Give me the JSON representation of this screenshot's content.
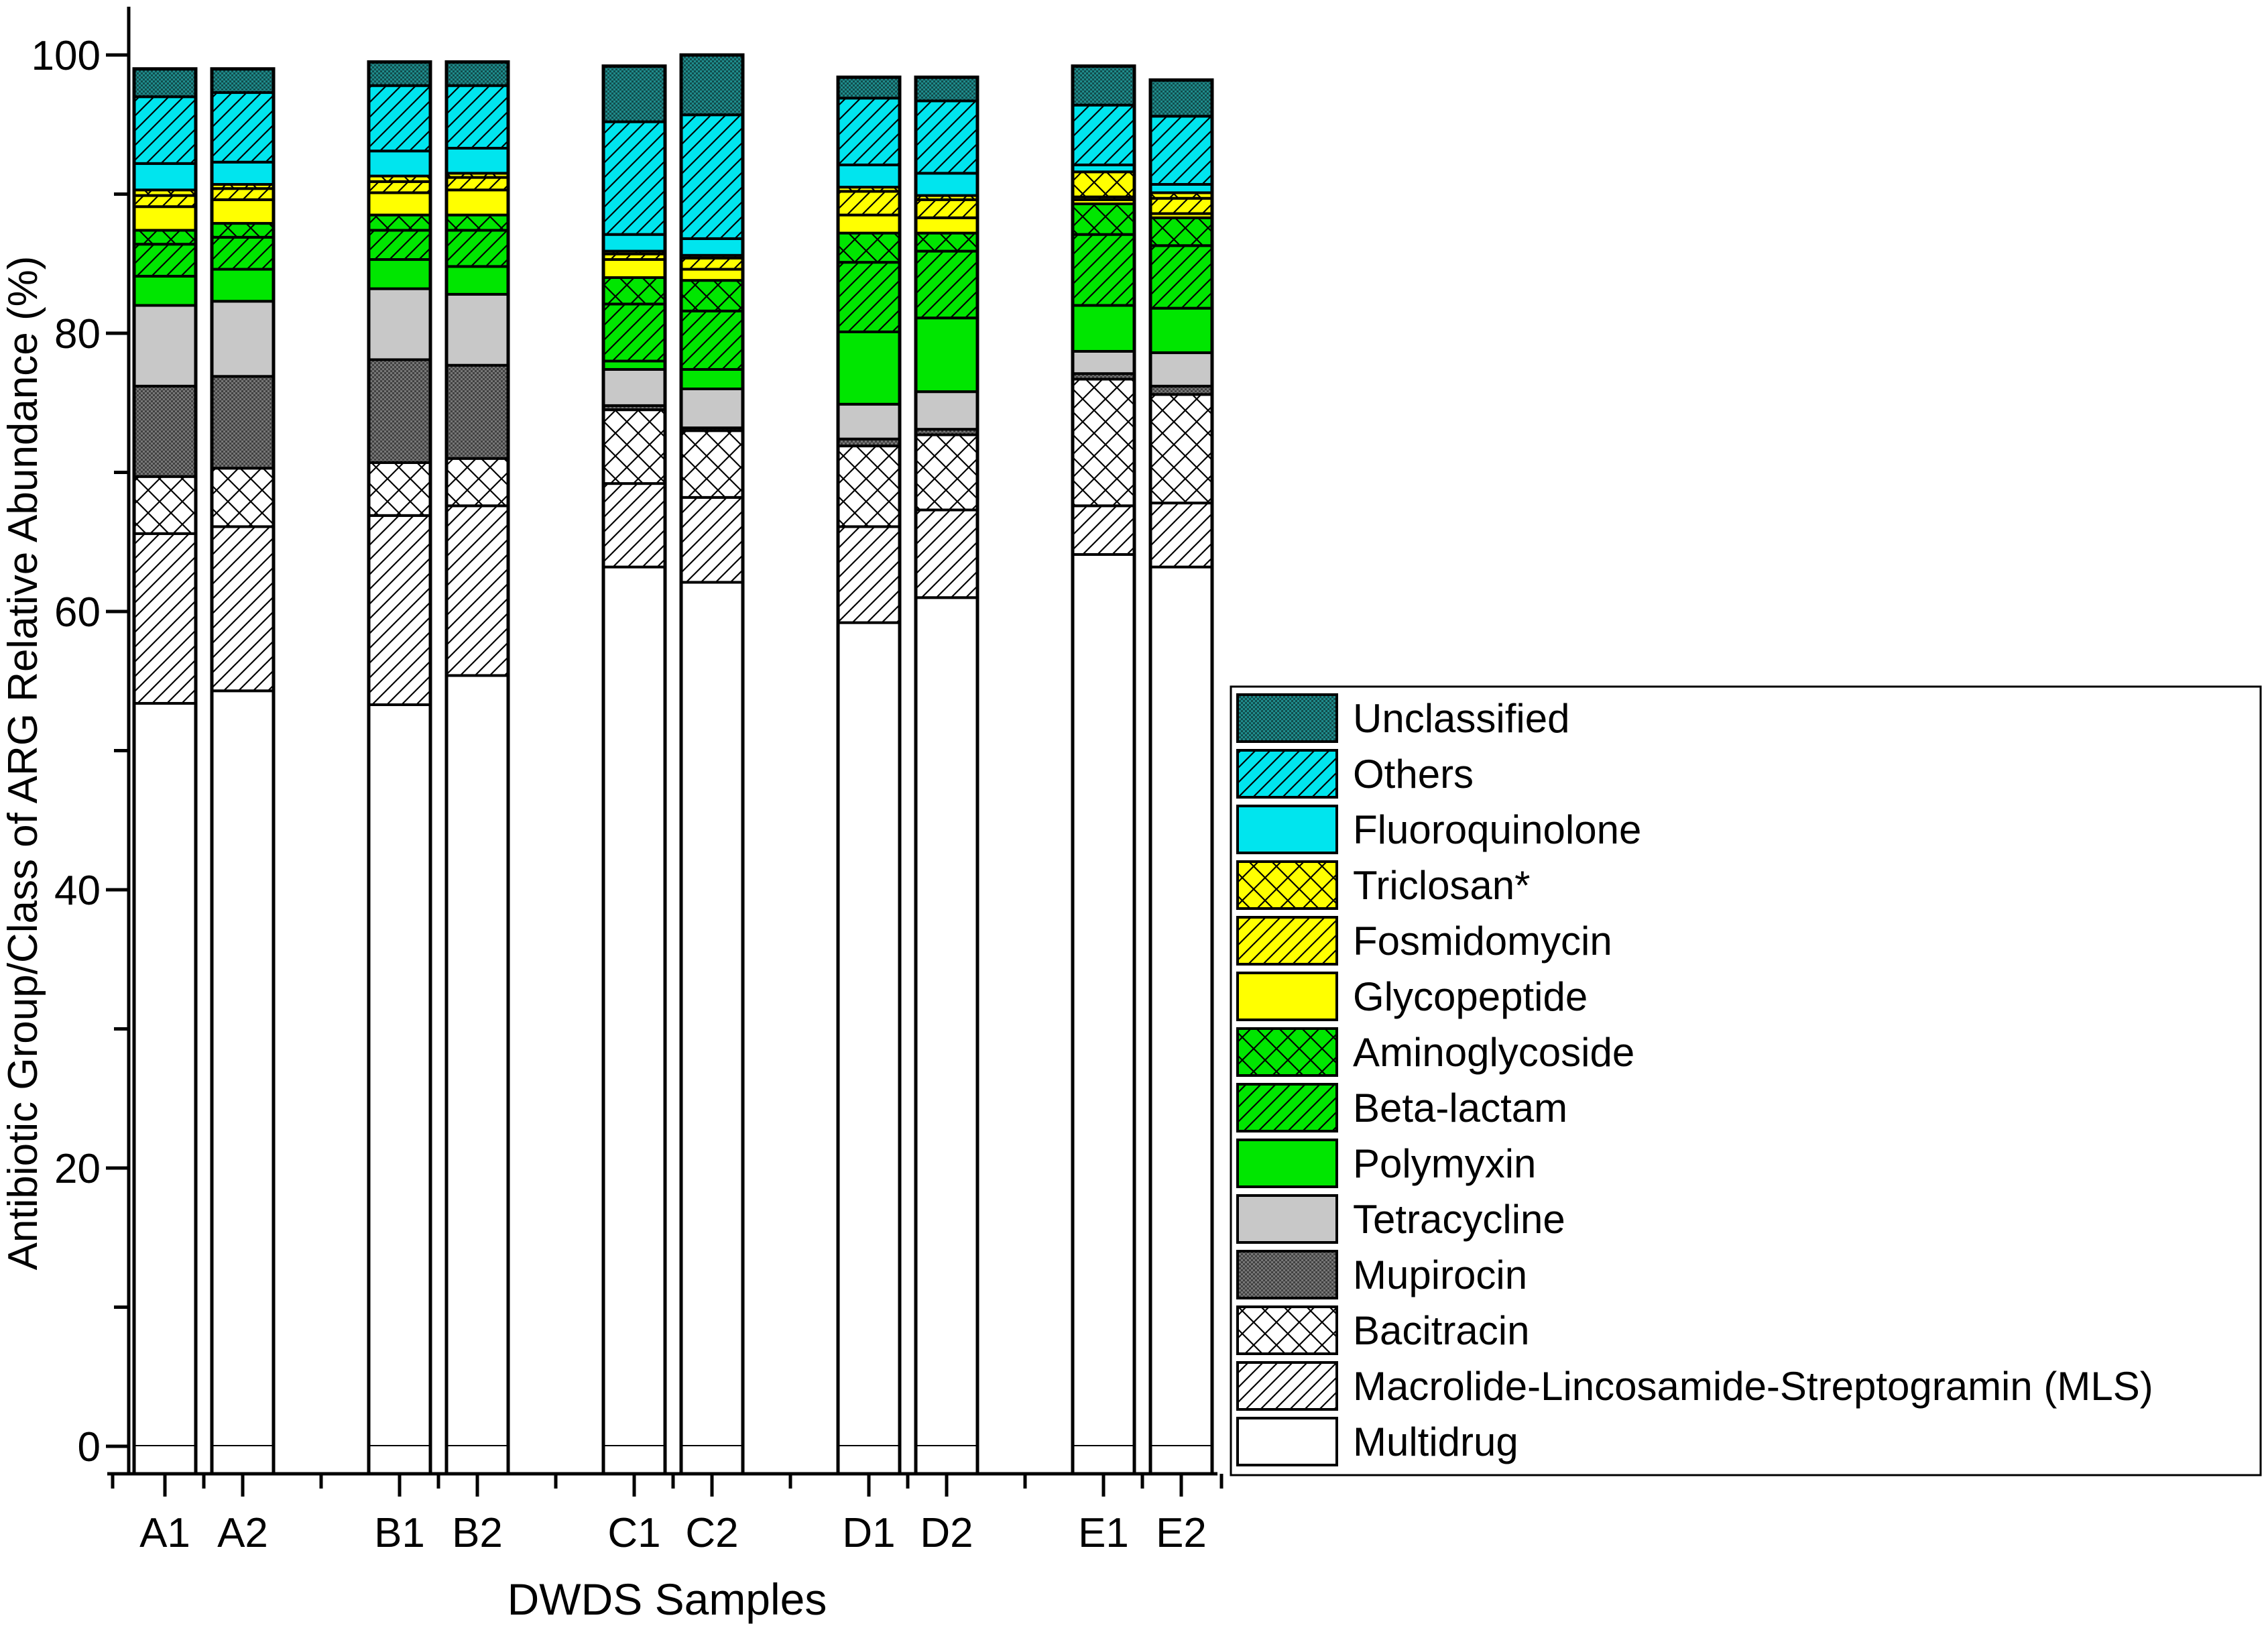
{
  "chart_data": {
    "type": "bar",
    "stacked": true,
    "title": "",
    "xlabel": "DWDS Samples",
    "ylabel": "Antibiotic Group/Class of ARG Relative Abundance (%)",
    "ylim": [
      0,
      100
    ],
    "yticks": [
      "0",
      "20",
      "40",
      "60",
      "80",
      "100"
    ],
    "legend_position": "right",
    "categories": [
      "A1",
      "A2",
      "B1",
      "B2",
      "C1",
      "C2",
      "D1",
      "D2",
      "E1",
      "E2"
    ],
    "groups": [
      [
        "A1",
        "A2"
      ],
      [
        "B1",
        "B2"
      ],
      [
        "C1",
        "C2"
      ],
      [
        "D1",
        "D2"
      ],
      [
        "E1",
        "E2"
      ]
    ],
    "series": [
      {
        "name": "Multidrug",
        "color": "#ffffff",
        "pattern": "none",
        "values": [
          53.4,
          54.3,
          53.3,
          55.4,
          63.2,
          62.1,
          59.2,
          61.0,
          64.1,
          63.2
        ]
      },
      {
        "name": "Macrolide-Lincosamide-Streptogramin (MLS)",
        "color": "#ffffff",
        "pattern": "hatch-fwd",
        "values": [
          12.2,
          11.8,
          13.6,
          12.2,
          6.0,
          6.1,
          6.9,
          6.3,
          3.5,
          4.6
        ]
      },
      {
        "name": "Bacitracin",
        "color": "#ffffff",
        "pattern": "cross",
        "values": [
          4.1,
          4.2,
          3.8,
          3.4,
          5.3,
          4.8,
          5.8,
          5.4,
          9.1,
          7.8
        ]
      },
      {
        "name": "Mupirocin",
        "color": "#777777",
        "pattern": "dots",
        "values": [
          6.5,
          6.6,
          7.4,
          6.7,
          0.3,
          0.2,
          0.5,
          0.4,
          0.4,
          0.6
        ]
      },
      {
        "name": "Tetracycline",
        "color": "#c8c8c8",
        "pattern": "none",
        "values": [
          5.8,
          5.4,
          5.1,
          5.1,
          2.6,
          2.8,
          2.5,
          2.7,
          1.6,
          2.4
        ]
      },
      {
        "name": "Polymyxin",
        "color": "#00e600",
        "pattern": "none",
        "values": [
          2.1,
          2.3,
          2.1,
          2.0,
          0.6,
          1.4,
          5.2,
          5.3,
          3.3,
          3.2
        ]
      },
      {
        "name": "Beta-lactam",
        "color": "#00e600",
        "pattern": "hatch-fwd",
        "values": [
          2.3,
          2.3,
          2.1,
          2.6,
          4.1,
          4.2,
          5.0,
          4.8,
          5.1,
          4.5
        ]
      },
      {
        "name": "Aminoglycoside",
        "color": "#00e600",
        "pattern": "cross",
        "values": [
          1.0,
          1.0,
          1.1,
          1.1,
          1.9,
          2.2,
          2.1,
          1.3,
          2.2,
          2.0
        ]
      },
      {
        "name": "Glycopeptide",
        "color": "#ffff00",
        "pattern": "none",
        "values": [
          1.7,
          1.7,
          1.6,
          1.8,
          1.3,
          0.8,
          1.3,
          1.1,
          0.3,
          0.3
        ]
      },
      {
        "name": "Fosmidomycin",
        "color": "#ffff00",
        "pattern": "hatch-fwd",
        "values": [
          0.8,
          0.8,
          0.8,
          0.9,
          0.4,
          0.8,
          1.7,
          1.3,
          0.2,
          1.1
        ]
      },
      {
        "name": "Triclosan*",
        "color": "#ffff00",
        "pattern": "cross",
        "values": [
          0.4,
          0.3,
          0.4,
          0.3,
          0.2,
          0.2,
          0.3,
          0.3,
          1.8,
          0.4
        ]
      },
      {
        "name": "Fluoroquinolone",
        "color": "#00e5ee",
        "pattern": "none",
        "values": [
          1.9,
          1.6,
          1.8,
          1.8,
          1.2,
          1.2,
          1.6,
          1.6,
          0.5,
          0.6
        ]
      },
      {
        "name": "Others",
        "color": "#00e5ee",
        "pattern": "hatch-fwd",
        "values": [
          4.8,
          5.0,
          4.7,
          4.5,
          8.1,
          8.9,
          4.8,
          5.2,
          4.3,
          4.9
        ]
      },
      {
        "name": "Unclassified",
        "color": "#1f8c8c",
        "pattern": "dots",
        "values": [
          2.0,
          1.7,
          1.7,
          1.7,
          4.0,
          4.3,
          1.5,
          1.7,
          2.8,
          2.6
        ]
      }
    ]
  }
}
